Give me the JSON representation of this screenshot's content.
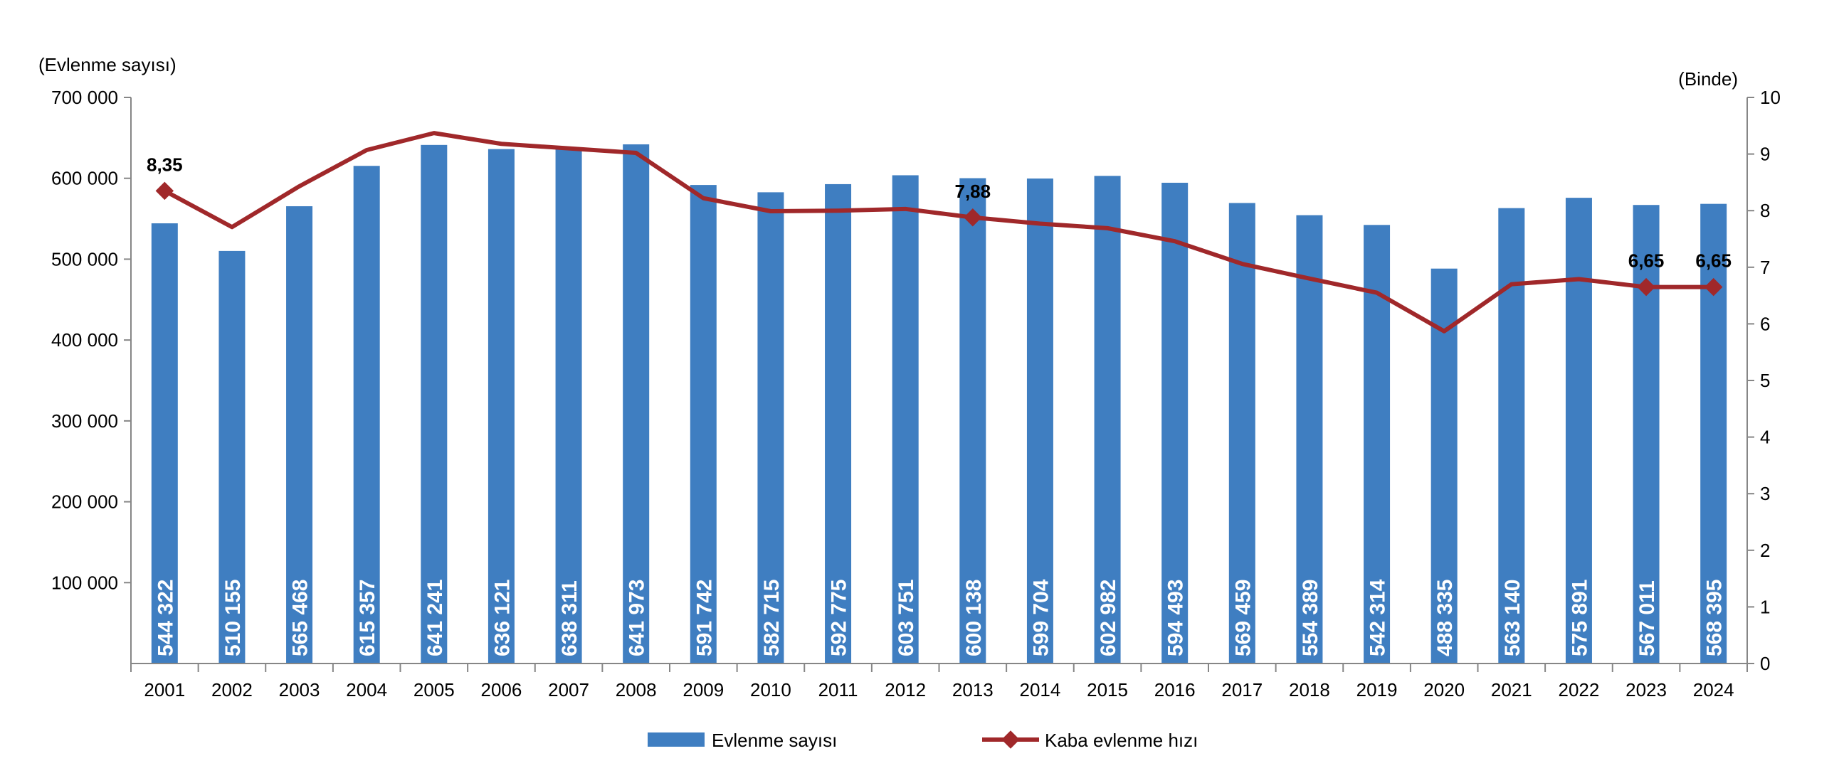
{
  "chart_data": {
    "type": "bar+line",
    "ylabel_left": "(Evlenme sayısı)",
    "ylabel_right": "(Binde)",
    "categories": [
      "2001",
      "2002",
      "2003",
      "2004",
      "2005",
      "2006",
      "2007",
      "2008",
      "2009",
      "2010",
      "2011",
      "2012",
      "2013",
      "2014",
      "2015",
      "2016",
      "2017",
      "2018",
      "2019",
      "2020",
      "2021",
      "2022",
      "2023",
      "2024"
    ],
    "y_left": {
      "min": 0,
      "max": 700000,
      "ticks": [
        100000,
        200000,
        300000,
        400000,
        500000,
        600000,
        700000
      ],
      "tick_labels": [
        "100 000",
        "200 000",
        "300 000",
        "400 000",
        "500 000",
        "600 000",
        "700 000"
      ]
    },
    "y_right": {
      "min": 0,
      "max": 10,
      "ticks": [
        0,
        1,
        2,
        3,
        4,
        5,
        6,
        7,
        8,
        9,
        10
      ],
      "tick_labels": [
        "0",
        "1",
        "2",
        "3",
        "4",
        "5",
        "6",
        "7",
        "8",
        "9",
        "10"
      ]
    },
    "series": [
      {
        "name": "Evlenme sayısı",
        "type": "bar",
        "axis": "left",
        "color": "#3F7EC1",
        "values": [
          544322,
          510155,
          565468,
          615357,
          641241,
          636121,
          638311,
          641973,
          591742,
          582715,
          592775,
          603751,
          600138,
          599704,
          602982,
          594493,
          569459,
          554389,
          542314,
          488335,
          563140,
          575891,
          567011,
          568395
        ],
        "labels": [
          "544 322",
          "510 155",
          "565 468",
          "615 357",
          "641 241",
          "636 121",
          "638 311",
          "641 973",
          "591 742",
          "582 715",
          "592 775",
          "603 751",
          "600 138",
          "599 704",
          "602 982",
          "594 493",
          "569 459",
          "554 389",
          "542 314",
          "488 335",
          "563 140",
          "575 891",
          "567 011",
          "568 395"
        ]
      },
      {
        "name": "Kaba evlenme hızı",
        "type": "line",
        "axis": "right",
        "color": "#A0282A",
        "values": [
          8.35,
          7.71,
          8.43,
          9.07,
          9.37,
          9.18,
          9.1,
          9.02,
          8.22,
          7.99,
          8.0,
          8.03,
          7.88,
          7.77,
          7.69,
          7.46,
          7.06,
          6.8,
          6.55,
          5.87,
          6.7,
          6.79,
          6.65,
          6.65
        ],
        "annotations": [
          {
            "index": 0,
            "text": "8,35"
          },
          {
            "index": 12,
            "text": "7,88"
          },
          {
            "index": 22,
            "text": "6,65"
          },
          {
            "index": 23,
            "text": "6,65"
          }
        ]
      }
    ],
    "legend": {
      "placement": "bottom",
      "items": [
        "Evlenme sayısı",
        "Kaba evlenme hızı"
      ]
    }
  }
}
